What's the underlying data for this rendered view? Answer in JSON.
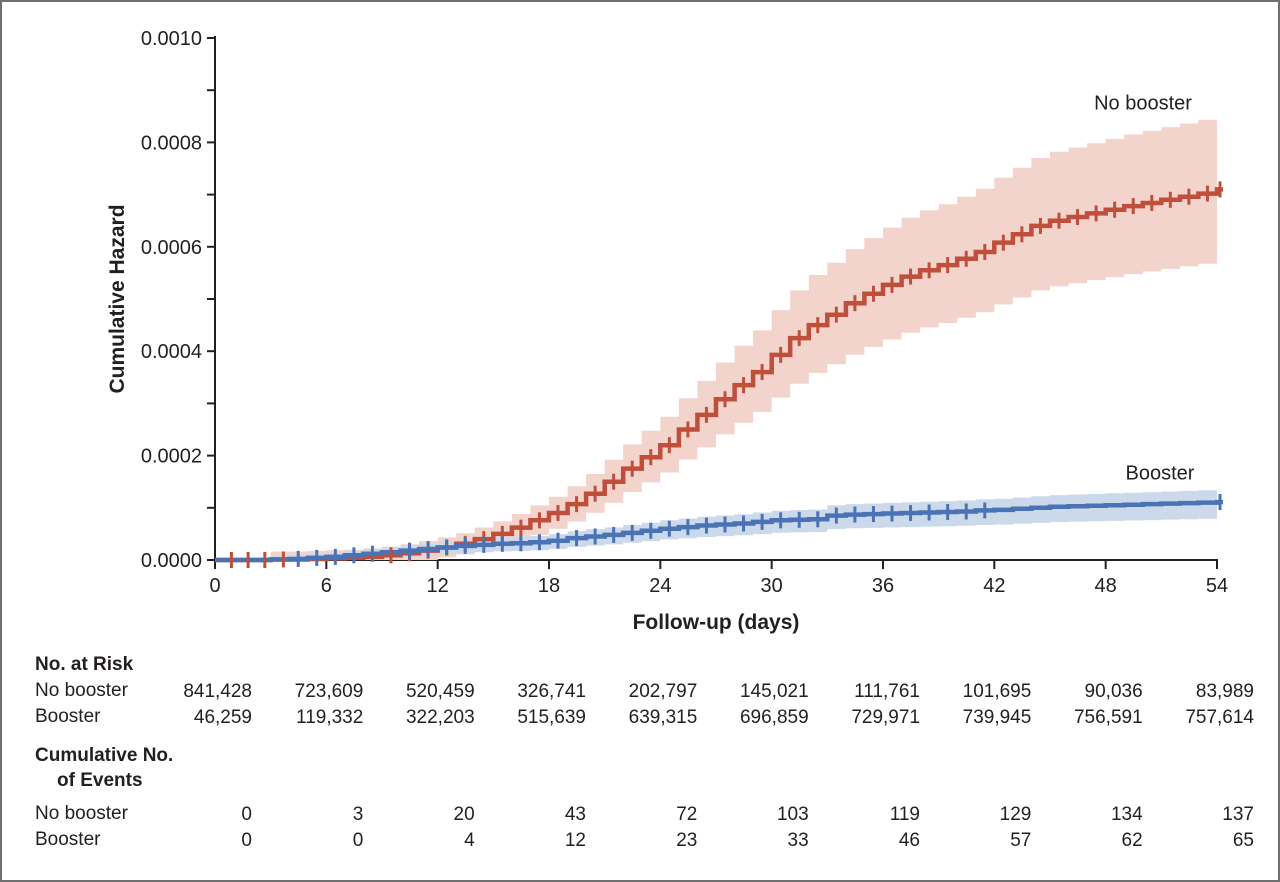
{
  "figure": {
    "background": "#ffffff",
    "border_color": "#6f6f6f",
    "axis_color": "#231f20",
    "text_color": "#231f20"
  },
  "chart_data": {
    "type": "line",
    "subtype": "cumulative-hazard-step-curves-with-confidence-bands",
    "title": "",
    "xlabel": "Follow-up (days)",
    "ylabel": "Cumulative Hazard",
    "xlim": [
      0,
      54
    ],
    "ylim": [
      0,
      0.001
    ],
    "x_ticks": [
      0,
      6,
      12,
      18,
      24,
      30,
      36,
      42,
      48,
      54
    ],
    "y_tick_labels": [
      "0.0000",
      "0.0002",
      "0.0004",
      "0.0006",
      "0.0008",
      "0.0010"
    ],
    "y_major_step": 0.0002,
    "y_minor_step": 0.0001,
    "grid": false,
    "legend_position": "inline-labels",
    "x_days": [
      0,
      1,
      2,
      3,
      4,
      5,
      6,
      7,
      8,
      9,
      10,
      11,
      12,
      13,
      14,
      15,
      16,
      17,
      18,
      19,
      20,
      21,
      22,
      23,
      24,
      25,
      26,
      27,
      28,
      29,
      30,
      31,
      32,
      33,
      34,
      35,
      36,
      37,
      38,
      39,
      40,
      41,
      42,
      43,
      44,
      45,
      46,
      47,
      48,
      49,
      50,
      51,
      52,
      53,
      54
    ],
    "series": [
      {
        "name": "No booster",
        "color": "#bf4f3b",
        "band_color": "#f2d4cc",
        "values": [
          0,
          0,
          0,
          1e-06,
          1e-06,
          2e-06,
          3e-06,
          4e-06,
          6e-06,
          9e-06,
          1.3e-05,
          1.8e-05,
          2.4e-05,
          3.1e-05,
          4e-05,
          5e-05,
          6.2e-05,
          7.6e-05,
          9e-05,
          0.000107,
          0.000127,
          0.00015,
          0.000175,
          0.000197,
          0.00022,
          0.00025,
          0.000278,
          0.000308,
          0.000335,
          0.00036,
          0.000393,
          0.000425,
          0.00045,
          0.00047,
          0.000492,
          0.00051,
          0.000527,
          0.000543,
          0.000555,
          0.000565,
          0.000577,
          0.00059,
          0.000608,
          0.000624,
          0.00064,
          0.00065,
          0.000657,
          0.000664,
          0.000671,
          0.000678,
          0.000684,
          0.00069,
          0.000696,
          0.000702,
          0.00071
        ],
        "censor_days": [
          0.4,
          1.3,
          2.2,
          3.2,
          9,
          10,
          11,
          12,
          13,
          14,
          15,
          16,
          17,
          18,
          19,
          20,
          21,
          22,
          23,
          24,
          25,
          26,
          27,
          28,
          29,
          30,
          31,
          32,
          33,
          34,
          35,
          36,
          37,
          38,
          39,
          40,
          41,
          42,
          43,
          44,
          45,
          46,
          47,
          48,
          49,
          50,
          51,
          52,
          53,
          54
        ]
      },
      {
        "name": "Booster",
        "color": "#4a73b5",
        "band_color": "#ccd9eb",
        "values": [
          0,
          0,
          0,
          1e-06,
          2e-06,
          4e-06,
          6e-06,
          9e-06,
          1.2e-05,
          1.5e-05,
          1.8e-05,
          2.1e-05,
          2.4e-05,
          2.7e-05,
          2.9e-05,
          3.1e-05,
          3.2e-05,
          3.4e-05,
          3.7e-05,
          4.2e-05,
          4.5e-05,
          4.8e-05,
          5.2e-05,
          5.6e-05,
          6e-05,
          6.3e-05,
          6.6e-05,
          6.8e-05,
          7e-05,
          7.3e-05,
          7.6e-05,
          7.7e-05,
          7.8e-05,
          8.5e-05,
          8.7e-05,
          8.8e-05,
          8.9e-05,
          9e-05,
          9.1e-05,
          9.2e-05,
          9.3e-05,
          9.5e-05,
          9.6e-05,
          9.8e-05,
          0.0001,
          0.000102,
          0.000103,
          0.000104,
          0.000105,
          0.000106,
          0.000107,
          0.000108,
          0.000109,
          0.00011,
          0.000111
        ],
        "censor_days": [
          4,
          5,
          6,
          7,
          8,
          10,
          11,
          12,
          13,
          14,
          15,
          16,
          17,
          18,
          19,
          20,
          21,
          22,
          23,
          24,
          25,
          26,
          27,
          28,
          29,
          30,
          31,
          32,
          33,
          34,
          35,
          36,
          37,
          38,
          39,
          40,
          41,
          54
        ]
      }
    ]
  },
  "risk_table": {
    "risk_header": "No. at Risk",
    "risk_rows": [
      {
        "label": "No booster",
        "values": [
          "841,428",
          "723,609",
          "520,459",
          "326,741",
          "202,797",
          "145,021",
          "111,761",
          "101,695",
          "90,036",
          "83,989"
        ]
      },
      {
        "label": "Booster",
        "values": [
          "46,259",
          "119,332",
          "322,203",
          "515,639",
          "639,315",
          "696,859",
          "729,971",
          "739,945",
          "756,591",
          "757,614"
        ]
      }
    ],
    "events_header_line1": "Cumulative No.",
    "events_header_line2": "of Events",
    "events_rows": [
      {
        "label": "No booster",
        "values": [
          "0",
          "3",
          "20",
          "43",
          "72",
          "103",
          "119",
          "129",
          "134",
          "137"
        ]
      },
      {
        "label": "Booster",
        "values": [
          "0",
          "0",
          "4",
          "12",
          "23",
          "33",
          "46",
          "57",
          "62",
          "65"
        ]
      }
    ]
  }
}
